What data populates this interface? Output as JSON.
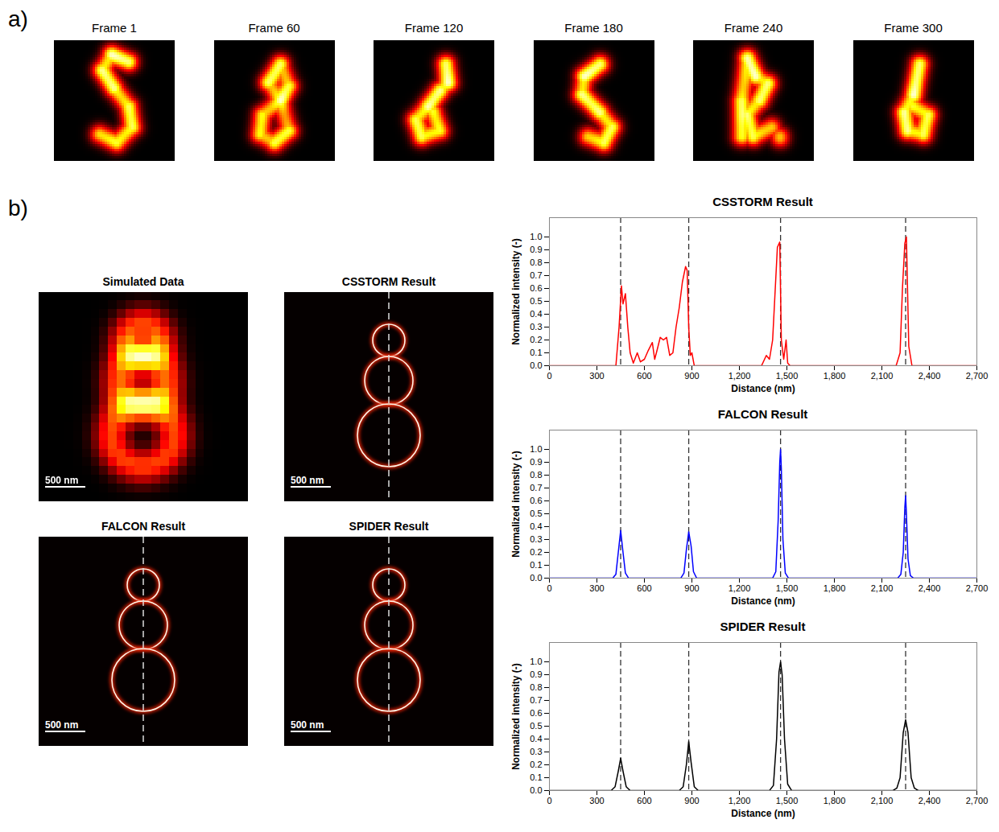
{
  "panels": {
    "a": {
      "label": "a)",
      "frames": [
        "Frame 1",
        "Frame 60",
        "Frame 120",
        "Frame 180",
        "Frame 240",
        "Frame 300"
      ]
    },
    "b": {
      "label": "b)",
      "images": [
        "Simulated Data",
        "CSSTORM Result",
        "FALCON Result",
        "SPIDER Result"
      ],
      "scale_bar": "500 nm"
    }
  },
  "chart_data": [
    {
      "type": "line",
      "title": "CSSTORM Result",
      "x_label": "Distance (nm)",
      "y_label": "Normalized intensity (-)",
      "x": [
        0,
        420,
        440,
        455,
        465,
        480,
        495,
        510,
        530,
        555,
        575,
        600,
        625,
        650,
        665,
        680,
        700,
        720,
        740,
        760,
        780,
        800,
        820,
        840,
        860,
        870,
        880,
        890,
        900,
        915,
        1340,
        1370,
        1390,
        1410,
        1440,
        1455,
        1465,
        1480,
        1495,
        1505,
        1520,
        2190,
        2215,
        2230,
        2245,
        2255,
        2270,
        2290,
        2700
      ],
      "values": [
        0,
        0,
        0.3,
        0.62,
        0.48,
        0.56,
        0.3,
        0.1,
        0.02,
        0.1,
        0.03,
        0.05,
        0.12,
        0.18,
        0.05,
        0.12,
        0.22,
        0.2,
        0.22,
        0.08,
        0.1,
        0.3,
        0.45,
        0.65,
        0.77,
        0.74,
        0.3,
        0.08,
        0.1,
        0,
        0,
        0.08,
        0.05,
        0.2,
        0.92,
        0.96,
        0.2,
        0.05,
        0.2,
        0.02,
        0,
        0,
        0.1,
        0.6,
        0.95,
        1.0,
        0.15,
        0,
        0
      ],
      "color": "#ff0000",
      "xlim": [
        0,
        2700
      ],
      "xticks": [
        0,
        300,
        600,
        900,
        1200,
        1500,
        1800,
        2100,
        2400,
        2700
      ],
      "ylim": [
        0,
        1.15
      ],
      "yticks": [
        0,
        0.1,
        0.2,
        0.3,
        0.4,
        0.5,
        0.6,
        0.7,
        0.8,
        0.9,
        1
      ],
      "reference_lines": [
        450,
        880,
        1460,
        2250
      ],
      "grid": false
    },
    {
      "type": "line",
      "title": "FALCON Result",
      "x_label": "Distance (nm)",
      "y_label": "Normalized intensity (-)",
      "x": [
        0,
        400,
        420,
        435,
        450,
        465,
        480,
        500,
        830,
        850,
        865,
        880,
        895,
        910,
        930,
        1410,
        1430,
        1445,
        1455,
        1460,
        1465,
        1475,
        1490,
        1510,
        2200,
        2220,
        2235,
        2245,
        2250,
        2255,
        2265,
        2280,
        2300,
        2700
      ],
      "values": [
        0,
        0,
        0.03,
        0.2,
        0.37,
        0.2,
        0.04,
        0,
        0,
        0.04,
        0.22,
        0.36,
        0.25,
        0.05,
        0,
        0,
        0.05,
        0.45,
        0.9,
        1.0,
        0.85,
        0.3,
        0.04,
        0,
        0,
        0.03,
        0.2,
        0.55,
        0.64,
        0.5,
        0.15,
        0.02,
        0,
        0
      ],
      "color": "#0000ff",
      "xlim": [
        0,
        2700
      ],
      "xticks": [
        0,
        300,
        600,
        900,
        1200,
        1500,
        1800,
        2100,
        2400,
        2700
      ],
      "ylim": [
        0,
        1.15
      ],
      "yticks": [
        0,
        0.1,
        0.2,
        0.3,
        0.4,
        0.5,
        0.6,
        0.7,
        0.8,
        0.9,
        1
      ],
      "reference_lines": [
        450,
        880,
        1460,
        2250
      ],
      "grid": false
    },
    {
      "type": "line",
      "title": "SPIDER Result",
      "x_label": "Distance (nm)",
      "y_label": "Normalized intensity (-)",
      "x": [
        0,
        390,
        415,
        435,
        450,
        465,
        485,
        510,
        820,
        845,
        865,
        880,
        895,
        915,
        940,
        1390,
        1415,
        1435,
        1450,
        1460,
        1470,
        1485,
        1505,
        1530,
        2170,
        2195,
        2215,
        2235,
        2250,
        2265,
        2285,
        2305,
        2330,
        2700
      ],
      "values": [
        0,
        0,
        0.03,
        0.15,
        0.25,
        0.15,
        0.03,
        0,
        0,
        0.03,
        0.2,
        0.38,
        0.22,
        0.03,
        0,
        0,
        0.04,
        0.4,
        0.92,
        1.0,
        0.9,
        0.4,
        0.05,
        0,
        0,
        0.02,
        0.1,
        0.45,
        0.55,
        0.45,
        0.1,
        0.02,
        0,
        0
      ],
      "color": "#000000",
      "xlim": [
        0,
        2700
      ],
      "xticks": [
        0,
        300,
        600,
        900,
        1200,
        1500,
        1800,
        2100,
        2400,
        2700
      ],
      "ylim": [
        0,
        1.15
      ],
      "yticks": [
        0,
        0.1,
        0.2,
        0.3,
        0.4,
        0.5,
        0.6,
        0.7,
        0.8,
        0.9,
        1
      ],
      "reference_lines": [
        450,
        880,
        1460,
        2250
      ],
      "grid": false
    }
  ]
}
